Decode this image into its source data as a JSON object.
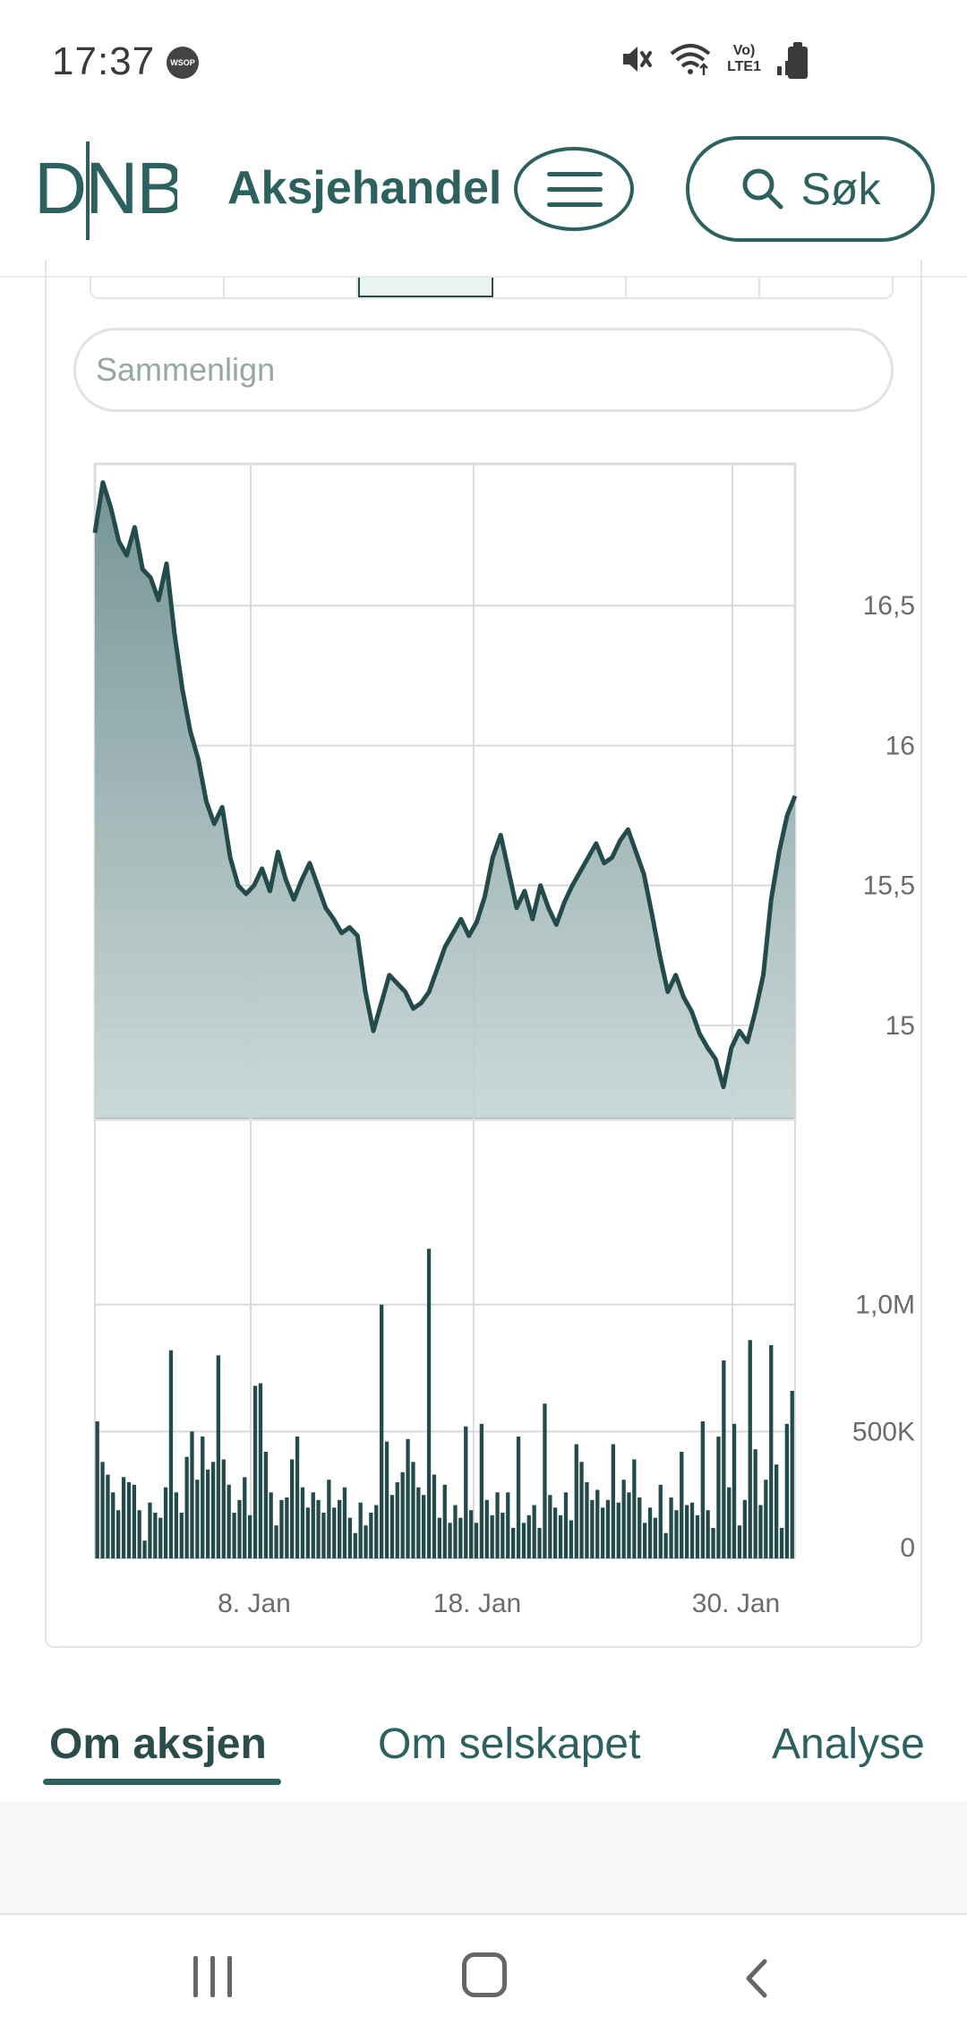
{
  "status_bar": {
    "time": "17:37",
    "app_icon": "WSOP",
    "lte_label_top": "Vo)",
    "lte_label_bottom": "LTE1",
    "icons": [
      "wsop-notification-icon",
      "mute-icon",
      "wifi-icon",
      "lte-icon",
      "signal-icon",
      "battery-icon"
    ]
  },
  "header": {
    "logo": "DNB",
    "title": "Aksjehandel",
    "search_label": "Søk"
  },
  "compare": {
    "placeholder": "Sammenlign"
  },
  "chart_data": [
    {
      "type": "area",
      "x_ticks": [
        "8. Jan",
        "18. Jan",
        "30. Jan"
      ],
      "y_ticks": [
        "16,5",
        "16",
        "15,5",
        "15"
      ],
      "ylim": [
        14.67,
        17.0
      ],
      "grid": true,
      "values": [
        16.76,
        16.94,
        16.85,
        16.73,
        16.68,
        16.78,
        16.63,
        16.6,
        16.52,
        16.65,
        16.4,
        16.2,
        16.05,
        15.95,
        15.8,
        15.72,
        15.78,
        15.6,
        15.5,
        15.47,
        15.5,
        15.56,
        15.48,
        15.62,
        15.52,
        15.45,
        15.52,
        15.58,
        15.5,
        15.42,
        15.38,
        15.33,
        15.35,
        15.32,
        15.12,
        14.98,
        15.08,
        15.18,
        15.15,
        15.12,
        15.06,
        15.08,
        15.12,
        15.2,
        15.28,
        15.33,
        15.38,
        15.32,
        15.37,
        15.46,
        15.6,
        15.68,
        15.55,
        15.42,
        15.48,
        15.38,
        15.5,
        15.42,
        15.36,
        15.44,
        15.5,
        15.55,
        15.6,
        15.65,
        15.58,
        15.6,
        15.66,
        15.7,
        15.62,
        15.54,
        15.4,
        15.25,
        15.12,
        15.18,
        15.1,
        15.05,
        14.97,
        14.92,
        14.88,
        14.78,
        14.92,
        14.98,
        14.94,
        15.05,
        15.18,
        15.45,
        15.62,
        15.75,
        15.82
      ],
      "series": [
        {
          "values": []
        }
      ]
    },
    {
      "type": "bar",
      "x_ticks": [
        "8. Jan",
        "18. Jan",
        "30. Jan"
      ],
      "y_ticks": [
        "1,0M",
        "500K",
        "0"
      ],
      "ylim": [
        0,
        1200000
      ],
      "values": [
        540000,
        380000,
        330000,
        260000,
        190000,
        320000,
        300000,
        290000,
        190000,
        70000,
        220000,
        180000,
        160000,
        280000,
        820000,
        260000,
        180000,
        400000,
        500000,
        310000,
        480000,
        350000,
        380000,
        800000,
        390000,
        290000,
        180000,
        230000,
        320000,
        170000,
        680000,
        690000,
        420000,
        260000,
        130000,
        230000,
        240000,
        390000,
        480000,
        280000,
        200000,
        260000,
        230000,
        180000,
        310000,
        200000,
        230000,
        280000,
        160000,
        100000,
        220000,
        130000,
        180000,
        210000,
        1000000,
        460000,
        250000,
        300000,
        340000,
        470000,
        380000,
        280000,
        250000,
        1220000,
        330000,
        160000,
        290000,
        140000,
        210000,
        160000,
        520000,
        190000,
        140000,
        530000,
        230000,
        170000,
        260000,
        180000,
        260000,
        120000,
        480000,
        140000,
        170000,
        210000,
        120000,
        610000,
        250000,
        200000,
        170000,
        260000,
        150000,
        450000,
        380000,
        300000,
        230000,
        270000,
        200000,
        230000,
        450000,
        220000,
        310000,
        260000,
        390000,
        240000,
        140000,
        200000,
        160000,
        290000,
        100000,
        240000,
        190000,
        420000,
        210000,
        220000,
        170000,
        540000,
        190000,
        120000,
        480000,
        780000,
        280000,
        530000,
        130000,
        230000,
        860000,
        430000,
        210000,
        310000,
        840000,
        370000,
        120000,
        530000,
        660000
      ]
    }
  ],
  "section_tabs": [
    {
      "label": "Om aksjen",
      "active": true
    },
    {
      "label": "Om selskapet",
      "active": false
    },
    {
      "label": "Analyse",
      "active": false
    }
  ],
  "nav_bar": {
    "buttons": [
      "recents-icon",
      "home-icon",
      "back-icon"
    ]
  }
}
